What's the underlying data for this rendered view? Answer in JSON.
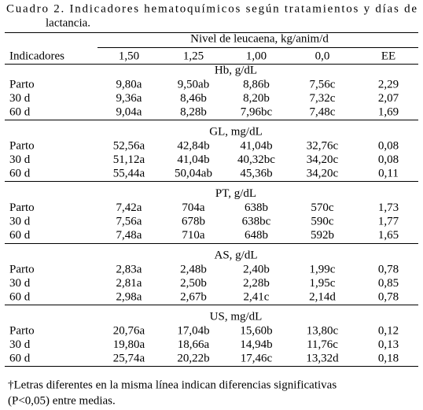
{
  "title_lines": [
    "Cuadro 2. Indicadores hematoquímicos según tratamientos y días de",
    "lactancia."
  ],
  "table": {
    "header": {
      "group": "Nivel de leucaena, kg/anim/d",
      "columns": [
        "Indicadores",
        "1,50",
        "1,25",
        "1,00",
        "0,0",
        "EE"
      ]
    },
    "sections": [
      {
        "title": "Hb, g/dL",
        "rows": [
          [
            "Parto",
            "9,80a",
            "9,50ab",
            "8,86b",
            "7,56c",
            "2,29"
          ],
          [
            "30 d",
            "9,36a",
            "8,46b",
            "8,20b",
            "7,32c",
            "2,07"
          ],
          [
            "60 d",
            "9,04a",
            "8,28b",
            "7,96bc",
            "7,48c",
            "1,69"
          ]
        ]
      },
      {
        "title": "GL, mg/dL",
        "rows": [
          [
            "Parto",
            "52,56a",
            "42,84b",
            "41,04b",
            "32,76c",
            "0,08"
          ],
          [
            "30 d",
            "51,12a",
            "41,04b",
            "40,32bc",
            "34,20c",
            "0,08"
          ],
          [
            "60 d",
            "55,44a",
            "50,04ab",
            "45,36b",
            "34,20c",
            "0,11"
          ]
        ]
      },
      {
        "title": "PT, g/dL",
        "rows": [
          [
            "Parto",
            "7,42a",
            "704a",
            "638b",
            "570c",
            "1,73"
          ],
          [
            "30 d",
            "7,56a",
            "678b",
            "638bc",
            "590c",
            "1,77"
          ],
          [
            "60 d",
            "7,48a",
            "710a",
            "648b",
            "592b",
            "1,65"
          ]
        ]
      },
      {
        "title": "AS, g/dL",
        "rows": [
          [
            "Parto",
            "2,83a",
            "2,48b",
            "2,40b",
            "1,99c",
            "0,78"
          ],
          [
            "30 d",
            "2,81a",
            "2,50b",
            "2,28b",
            "1,95c",
            "0,85"
          ],
          [
            "60 d",
            "2,98a",
            "2,67b",
            "2,41c",
            "2,14d",
            "0,78"
          ]
        ]
      },
      {
        "title": "US, mg/dL",
        "rows": [
          [
            "Parto",
            "20,76a",
            "17,04b",
            "15,60b",
            "13,80c",
            "0,12"
          ],
          [
            "30 d",
            "19,80a",
            "18,66a",
            "14,94b",
            "11,76c",
            "0,13"
          ],
          [
            "60 d",
            "25,74a",
            "20,22b",
            "17,46c",
            "13,32d",
            "0,18"
          ]
        ]
      }
    ]
  },
  "footnote_lines": [
    "†Letras diferentes en la misma línea indican diferencias significativas",
    "(P<0,05) entre medias."
  ]
}
